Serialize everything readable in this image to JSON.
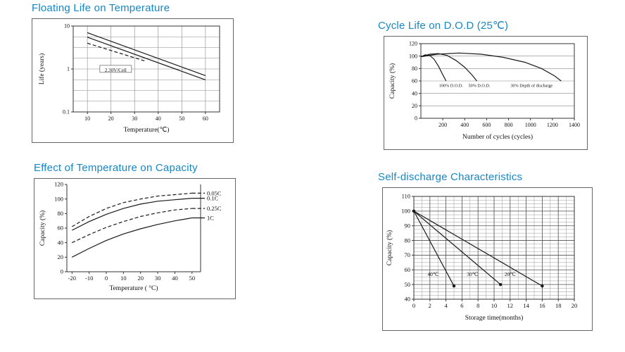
{
  "page": {
    "background": "#ffffff",
    "accent": "#1787c6"
  },
  "chart_data": [
    {
      "id": "floating_life",
      "type": "line",
      "title": "Floating Life on Temperature",
      "xlabel": "Temperature(℃)",
      "ylabel": "Life (years)",
      "x_range": [
        10,
        60
      ],
      "box_x_range": [
        4,
        66
      ],
      "x_ticks": [
        10,
        20,
        30,
        40,
        50,
        60
      ],
      "y_scale": "log",
      "y_range": [
        0.1,
        10
      ],
      "y_ticks": [
        10,
        1,
        0.1
      ],
      "series": [
        {
          "name": "float-band-upper",
          "dash": false,
          "points": [
            [
              10,
              7
            ],
            [
              60,
              0.7
            ]
          ]
        },
        {
          "name": "float-band-lower",
          "dash": false,
          "points": [
            [
              10,
              5.5
            ],
            [
              60,
              0.56
            ]
          ]
        },
        {
          "name": "float-dashed",
          "dash": true,
          "points": [
            [
              10,
              4.0
            ],
            [
              35,
              1.5
            ]
          ]
        }
      ],
      "annotations": [
        {
          "text": "2.30V/Cell",
          "x": 22,
          "y": 0.95,
          "boxed": true
        }
      ]
    },
    {
      "id": "cycle_life",
      "type": "line",
      "title": "Cycle Life on D.O.D (25℃)",
      "xlabel": "Number of cycles (cycles)",
      "ylabel": "Capacity (%)",
      "x_range": [
        0,
        1400
      ],
      "x_ticks": [
        200,
        400,
        600,
        800,
        1000,
        1200,
        1400
      ],
      "y_range": [
        0,
        120
      ],
      "y_ticks": [
        0,
        20,
        40,
        60,
        80,
        100,
        120
      ],
      "series": [
        {
          "name": "dod-100",
          "dash": false,
          "points": [
            [
              0,
              99
            ],
            [
              40,
              102
            ],
            [
              80,
              101
            ],
            [
              120,
              95
            ],
            [
              160,
              84
            ],
            [
              200,
              70
            ],
            [
              230,
              60
            ]
          ]
        },
        {
          "name": "dod-50",
          "dash": false,
          "points": [
            [
              0,
              99
            ],
            [
              80,
              103
            ],
            [
              160,
              104
            ],
            [
              240,
              101
            ],
            [
              320,
              93
            ],
            [
              400,
              82
            ],
            [
              470,
              69
            ],
            [
              510,
              60
            ]
          ]
        },
        {
          "name": "dod-30",
          "dash": false,
          "points": [
            [
              0,
              99
            ],
            [
              150,
              103
            ],
            [
              350,
              105
            ],
            [
              550,
              103
            ],
            [
              750,
              98
            ],
            [
              950,
              90
            ],
            [
              1100,
              80
            ],
            [
              1220,
              68
            ],
            [
              1280,
              60
            ]
          ]
        }
      ],
      "annotations": [
        {
          "text": "100% D.O.D.",
          "x": 275,
          "y": 53
        },
        {
          "text": "50% D.O.D.",
          "x": 533,
          "y": 53
        },
        {
          "text": "30% Depth of  discharge",
          "x": 1010,
          "y": 53
        }
      ]
    },
    {
      "id": "temp_capacity",
      "type": "line",
      "title": "Effect of Temperature on Capacity",
      "xlabel": "Temperature ( °C)",
      "ylabel": "Capacity (%)",
      "x_range": [
        -20,
        50
      ],
      "box_x_range": [
        -23,
        55
      ],
      "x_ticks": [
        -20,
        -10,
        0,
        10,
        20,
        30,
        40,
        50
      ],
      "y_range": [
        0,
        120
      ],
      "y_ticks": [
        0,
        20,
        40,
        60,
        80,
        100,
        120
      ],
      "series": [
        {
          "name": "rate-0-05c",
          "dash": true,
          "label": "0.05C",
          "points": [
            [
              -20,
              62
            ],
            [
              -10,
              76
            ],
            [
              0,
              87
            ],
            [
              10,
              95
            ],
            [
              20,
              100
            ],
            [
              30,
              104
            ],
            [
              40,
              106
            ],
            [
              50,
              108
            ]
          ]
        },
        {
          "name": "rate-0-1c",
          "dash": false,
          "label": "0.1C",
          "points": [
            [
              -20,
              57
            ],
            [
              -10,
              69
            ],
            [
              0,
              79
            ],
            [
              10,
              87
            ],
            [
              20,
              93
            ],
            [
              30,
              97
            ],
            [
              40,
              99
            ],
            [
              50,
              101
            ]
          ]
        },
        {
          "name": "rate-0-25c",
          "dash": true,
          "label": "0.25C",
          "points": [
            [
              -20,
              40
            ],
            [
              -10,
              51
            ],
            [
              0,
              61
            ],
            [
              10,
              69
            ],
            [
              20,
              76
            ],
            [
              30,
              81
            ],
            [
              40,
              85
            ],
            [
              50,
              87
            ]
          ]
        },
        {
          "name": "rate-1c",
          "dash": false,
          "label": "1C",
          "points": [
            [
              -20,
              20
            ],
            [
              -10,
              32
            ],
            [
              0,
              43
            ],
            [
              10,
              52
            ],
            [
              20,
              59
            ],
            [
              30,
              65
            ],
            [
              40,
              70
            ],
            [
              50,
              74
            ]
          ]
        }
      ],
      "annotations": []
    },
    {
      "id": "self_discharge",
      "type": "line",
      "title": "Self-discharge Characteristics",
      "xlabel": "Storage time(months)",
      "ylabel": "Capacity (%)",
      "x_range": [
        0,
        20
      ],
      "x_ticks": [
        0,
        2,
        4,
        6,
        8,
        10,
        12,
        14,
        16,
        18,
        20
      ],
      "y_range": [
        40,
        110
      ],
      "y_ticks": [
        40,
        50,
        60,
        70,
        80,
        90,
        100,
        110
      ],
      "series": [
        {
          "name": "temp-40c",
          "dash": false,
          "end_marker": true,
          "start_marker": true,
          "points": [
            [
              0,
              100
            ],
            [
              5,
              49
            ]
          ]
        },
        {
          "name": "temp-30c",
          "dash": false,
          "end_marker": true,
          "points": [
            [
              0,
              100
            ],
            [
              10.8,
              50
            ]
          ]
        },
        {
          "name": "temp-20c",
          "dash": false,
          "end_marker": true,
          "points": [
            [
              0,
              100
            ],
            [
              16,
              49
            ]
          ]
        }
      ],
      "annotations": [
        {
          "text": "40℃",
          "x": 2.4,
          "y": 57
        },
        {
          "text": "30℃",
          "x": 7.3,
          "y": 57
        },
        {
          "text": "20℃",
          "x": 12.0,
          "y": 57
        }
      ]
    }
  ]
}
